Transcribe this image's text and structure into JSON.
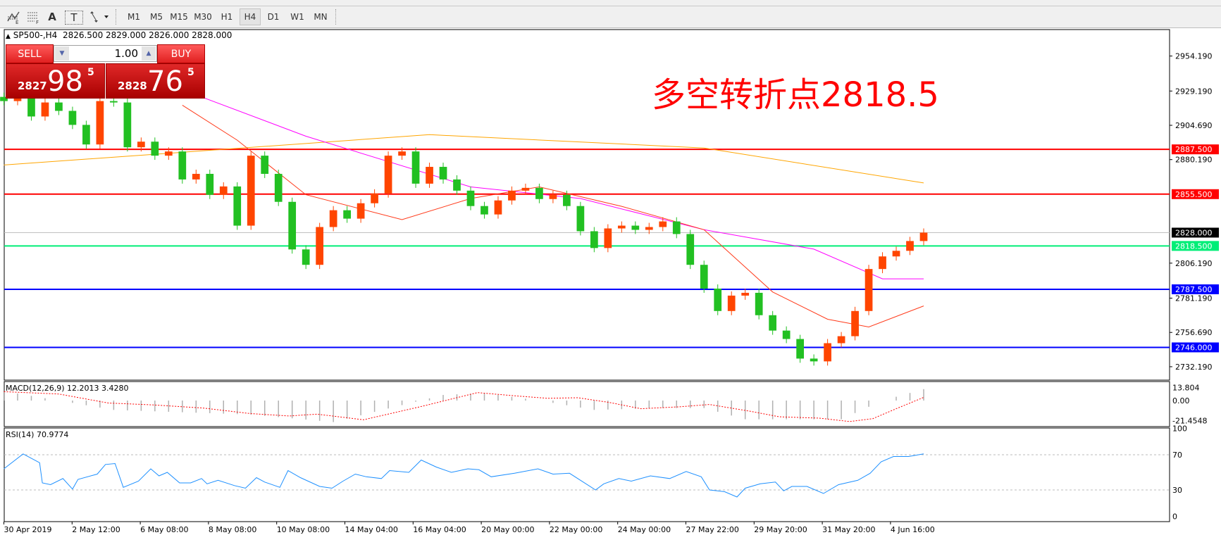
{
  "toolbar": {
    "tools": [
      {
        "icon": "elliott-wave-icon"
      },
      {
        "icon": "fibonacci-icon"
      },
      {
        "label": "A",
        "icon": "text-icon"
      },
      {
        "label": "T",
        "icon": "text-label-icon"
      },
      {
        "icon": "arrows-dropdown-icon"
      }
    ],
    "timeframes": [
      "M1",
      "M5",
      "M15",
      "M30",
      "H1",
      "H4",
      "D1",
      "W1",
      "MN"
    ],
    "active_timeframe": "H4"
  },
  "header": {
    "symbol_line": "SP500-,H4  2826.500 2829.000 2826.000 2828.000"
  },
  "trade_panel": {
    "sell_label": "SELL",
    "buy_label": "BUY",
    "lot": "1.00",
    "sell_price_small": "2827",
    "sell_price_big": "98",
    "sell_price_sup": "5",
    "buy_price_small": "2828",
    "buy_price_big": "76",
    "buy_price_sup": "5"
  },
  "annotation": "多空转折点2818.5",
  "colors": {
    "bull": "#ff4500",
    "bear": "#22c022",
    "ma_fast": "#ff3a1a",
    "ma_mid": "#ff00ff",
    "ma_slow": "#ffa500",
    "resistance": "#ff0000",
    "pivot": "#00ee77",
    "support": "#0000ff",
    "rsi": "#1e90ff",
    "macd_hist": "#b0b0b0",
    "macd_signal": "#ff0000"
  },
  "chart_data": [
    {
      "type": "candlestick",
      "title": "SP500-,H4",
      "ylim": [
        2720,
        2973
      ],
      "price_ticks": [
        "2954.190",
        "2929.190",
        "2904.690",
        "2880.190",
        "2806.190",
        "2781.190",
        "2756.690",
        "2732.190"
      ],
      "time_labels": [
        "30 Apr 2019",
        "2 May 12:00",
        "6 May 08:00",
        "8 May 08:00",
        "10 May 08:00",
        "14 May 04:00",
        "16 May 04:00",
        "20 May 00:00",
        "22 May 00:00",
        "24 May 00:00",
        "27 May 22:00",
        "29 May 20:00",
        "31 May 20:00",
        "4 Jun 16:00"
      ],
      "closes": [
        2922,
        2925,
        2911,
        2921,
        2915,
        2905,
        2891,
        2922,
        2921,
        2889,
        2893,
        2883,
        2886,
        2866,
        2870,
        2855,
        2861,
        2833,
        2883,
        2870,
        2850,
        2816,
        2805,
        2832,
        2844,
        2838,
        2849,
        2856,
        2883,
        2886,
        2863,
        2875,
        2866,
        2858,
        2847,
        2841,
        2851,
        2858,
        2860,
        2852,
        2855,
        2847,
        2829,
        2817,
        2831,
        2833,
        2830,
        2832,
        2836,
        2827,
        2805,
        2788,
        2772,
        2783,
        2785,
        2769,
        2758,
        2752,
        2738,
        2736,
        2749,
        2754,
        2772,
        2802,
        2811,
        2815,
        2822,
        2828
      ],
      "moving_averages": [
        {
          "color_key": "ma_slow",
          "points": [
            [
              0,
              2876.3
            ],
            [
              31,
              2898
            ],
            [
              51,
              2888.5
            ],
            [
              67,
              2863.5
            ]
          ]
        },
        {
          "color_key": "ma_mid",
          "points": [
            [
              14,
              2926.4
            ],
            [
              22,
              2896.9
            ],
            [
              34,
              2860.7
            ],
            [
              42,
              2852.4
            ],
            [
              51,
              2830.1
            ],
            [
              59,
              2816.2
            ],
            [
              64,
              2795
            ],
            [
              67,
              2795
            ]
          ]
        },
        {
          "color_key": "ma_fast",
          "points": [
            [
              13,
              2919.1
            ],
            [
              17,
              2894.1
            ],
            [
              22,
              2855.1
            ],
            [
              29,
              2837.3
            ],
            [
              34,
              2852.4
            ],
            [
              39,
              2860.7
            ],
            [
              45,
              2846.8
            ],
            [
              51,
              2830.1
            ],
            [
              56,
              2785.6
            ],
            [
              60,
              2766.1
            ],
            [
              63,
              2760.6
            ],
            [
              67,
              2775.6
            ]
          ]
        }
      ],
      "levels": [
        {
          "price": 2887.5,
          "label": "2887.500",
          "color_key": "resistance"
        },
        {
          "price": 2855.5,
          "label": "2855.500",
          "color_key": "resistance"
        },
        {
          "price": 2818.5,
          "label": "2818.500",
          "color_key": "pivot"
        },
        {
          "price": 2787.5,
          "label": "2787.500",
          "color_key": "support"
        },
        {
          "price": 2746.0,
          "label": "2746.000",
          "color_key": "support"
        }
      ],
      "current_price": {
        "price": 2828.0,
        "label": "2828.000"
      }
    },
    {
      "type": "bar",
      "title": "MACD(12,26,9) 12.2013 3.4280",
      "ticks": [
        "13.804",
        "0.00",
        "-21.4548"
      ],
      "ylim": [
        -21.4548,
        13.804
      ],
      "histogram_points": [
        [
          0,
          10
        ],
        [
          4,
          0
        ],
        [
          8,
          -10
        ],
        [
          18,
          -15
        ],
        [
          24,
          -23
        ],
        [
          32,
          6
        ],
        [
          35,
          8
        ],
        [
          39,
          0
        ],
        [
          43,
          -10
        ],
        [
          48,
          -8
        ],
        [
          51,
          -8
        ],
        [
          54,
          -20
        ],
        [
          61,
          -20
        ],
        [
          64,
          0
        ],
        [
          67,
          12.2
        ]
      ],
      "signal_points": [
        [
          0,
          9.5
        ],
        [
          4,
          7
        ],
        [
          7.6,
          -2.6
        ],
        [
          11,
          -4.7
        ],
        [
          14.5,
          -8
        ],
        [
          18,
          -14
        ],
        [
          20.8,
          -16.5
        ],
        [
          22.8,
          -14.5
        ],
        [
          26.2,
          -20.5
        ],
        [
          30.5,
          -6
        ],
        [
          34.5,
          8.5
        ],
        [
          37.3,
          5
        ],
        [
          39.6,
          2.4
        ],
        [
          41.8,
          3
        ],
        [
          44.1,
          -2
        ],
        [
          46.4,
          -8.7
        ],
        [
          49.2,
          -6.7
        ],
        [
          51.4,
          -4.2
        ],
        [
          54.3,
          -11.3
        ],
        [
          56.5,
          -17.4
        ],
        [
          59.4,
          -18.8
        ],
        [
          61.6,
          -22.4
        ],
        [
          63.3,
          -19.3
        ],
        [
          65,
          -8.7
        ],
        [
          67,
          3.4
        ]
      ]
    },
    {
      "type": "line",
      "title": "RSI(14) 70.9774",
      "ticks": [
        "100",
        "70",
        "30",
        "0"
      ],
      "ylim": [
        0,
        100
      ],
      "levels": [
        70,
        30
      ],
      "points": [
        [
          0,
          54
        ],
        [
          1.4,
          71
        ],
        [
          2.6,
          61
        ],
        [
          2.8,
          38
        ],
        [
          3.4,
          36
        ],
        [
          4.3,
          43
        ],
        [
          5,
          31
        ],
        [
          5.4,
          42
        ],
        [
          6.8,
          48
        ],
        [
          7.4,
          59
        ],
        [
          8.1,
          60
        ],
        [
          8.7,
          33
        ],
        [
          9.8,
          40
        ],
        [
          10.7,
          54
        ],
        [
          11.3,
          46
        ],
        [
          11.9,
          50
        ],
        [
          12.8,
          38
        ],
        [
          13.6,
          38
        ],
        [
          14.4,
          43
        ],
        [
          14.8,
          37
        ],
        [
          15.6,
          41
        ],
        [
          16.8,
          35
        ],
        [
          17.6,
          32
        ],
        [
          18.4,
          44
        ],
        [
          19,
          39
        ],
        [
          20.1,
          33
        ],
        [
          20.7,
          52
        ],
        [
          21.6,
          44
        ],
        [
          23,
          34
        ],
        [
          23.9,
          32
        ],
        [
          24.7,
          40
        ],
        [
          25.6,
          48
        ],
        [
          26.4,
          45
        ],
        [
          27.5,
          43
        ],
        [
          28.1,
          52
        ],
        [
          29.5,
          50
        ],
        [
          30.4,
          64
        ],
        [
          31.5,
          56
        ],
        [
          32.6,
          50
        ],
        [
          33.8,
          54
        ],
        [
          34.6,
          53
        ],
        [
          35.5,
          45
        ],
        [
          37.2,
          49
        ],
        [
          38.9,
          54
        ],
        [
          40,
          48
        ],
        [
          41.2,
          49
        ],
        [
          43.1,
          30
        ],
        [
          43.7,
          37
        ],
        [
          44.8,
          43
        ],
        [
          45.7,
          40
        ],
        [
          47.1,
          46
        ],
        [
          48.5,
          43
        ],
        [
          49.7,
          51
        ],
        [
          50.8,
          45
        ],
        [
          51.4,
          30
        ],
        [
          52.5,
          28
        ],
        [
          53.4,
          22
        ],
        [
          54,
          32
        ],
        [
          55.1,
          37
        ],
        [
          56.2,
          39
        ],
        [
          56.8,
          29
        ],
        [
          57.4,
          34
        ],
        [
          58.5,
          34
        ],
        [
          59.7,
          26
        ],
        [
          60.8,
          36
        ],
        [
          62.2,
          41
        ],
        [
          63.1,
          49
        ],
        [
          63.9,
          62
        ],
        [
          64.8,
          68
        ],
        [
          65.9,
          68
        ],
        [
          67,
          71
        ]
      ]
    }
  ]
}
